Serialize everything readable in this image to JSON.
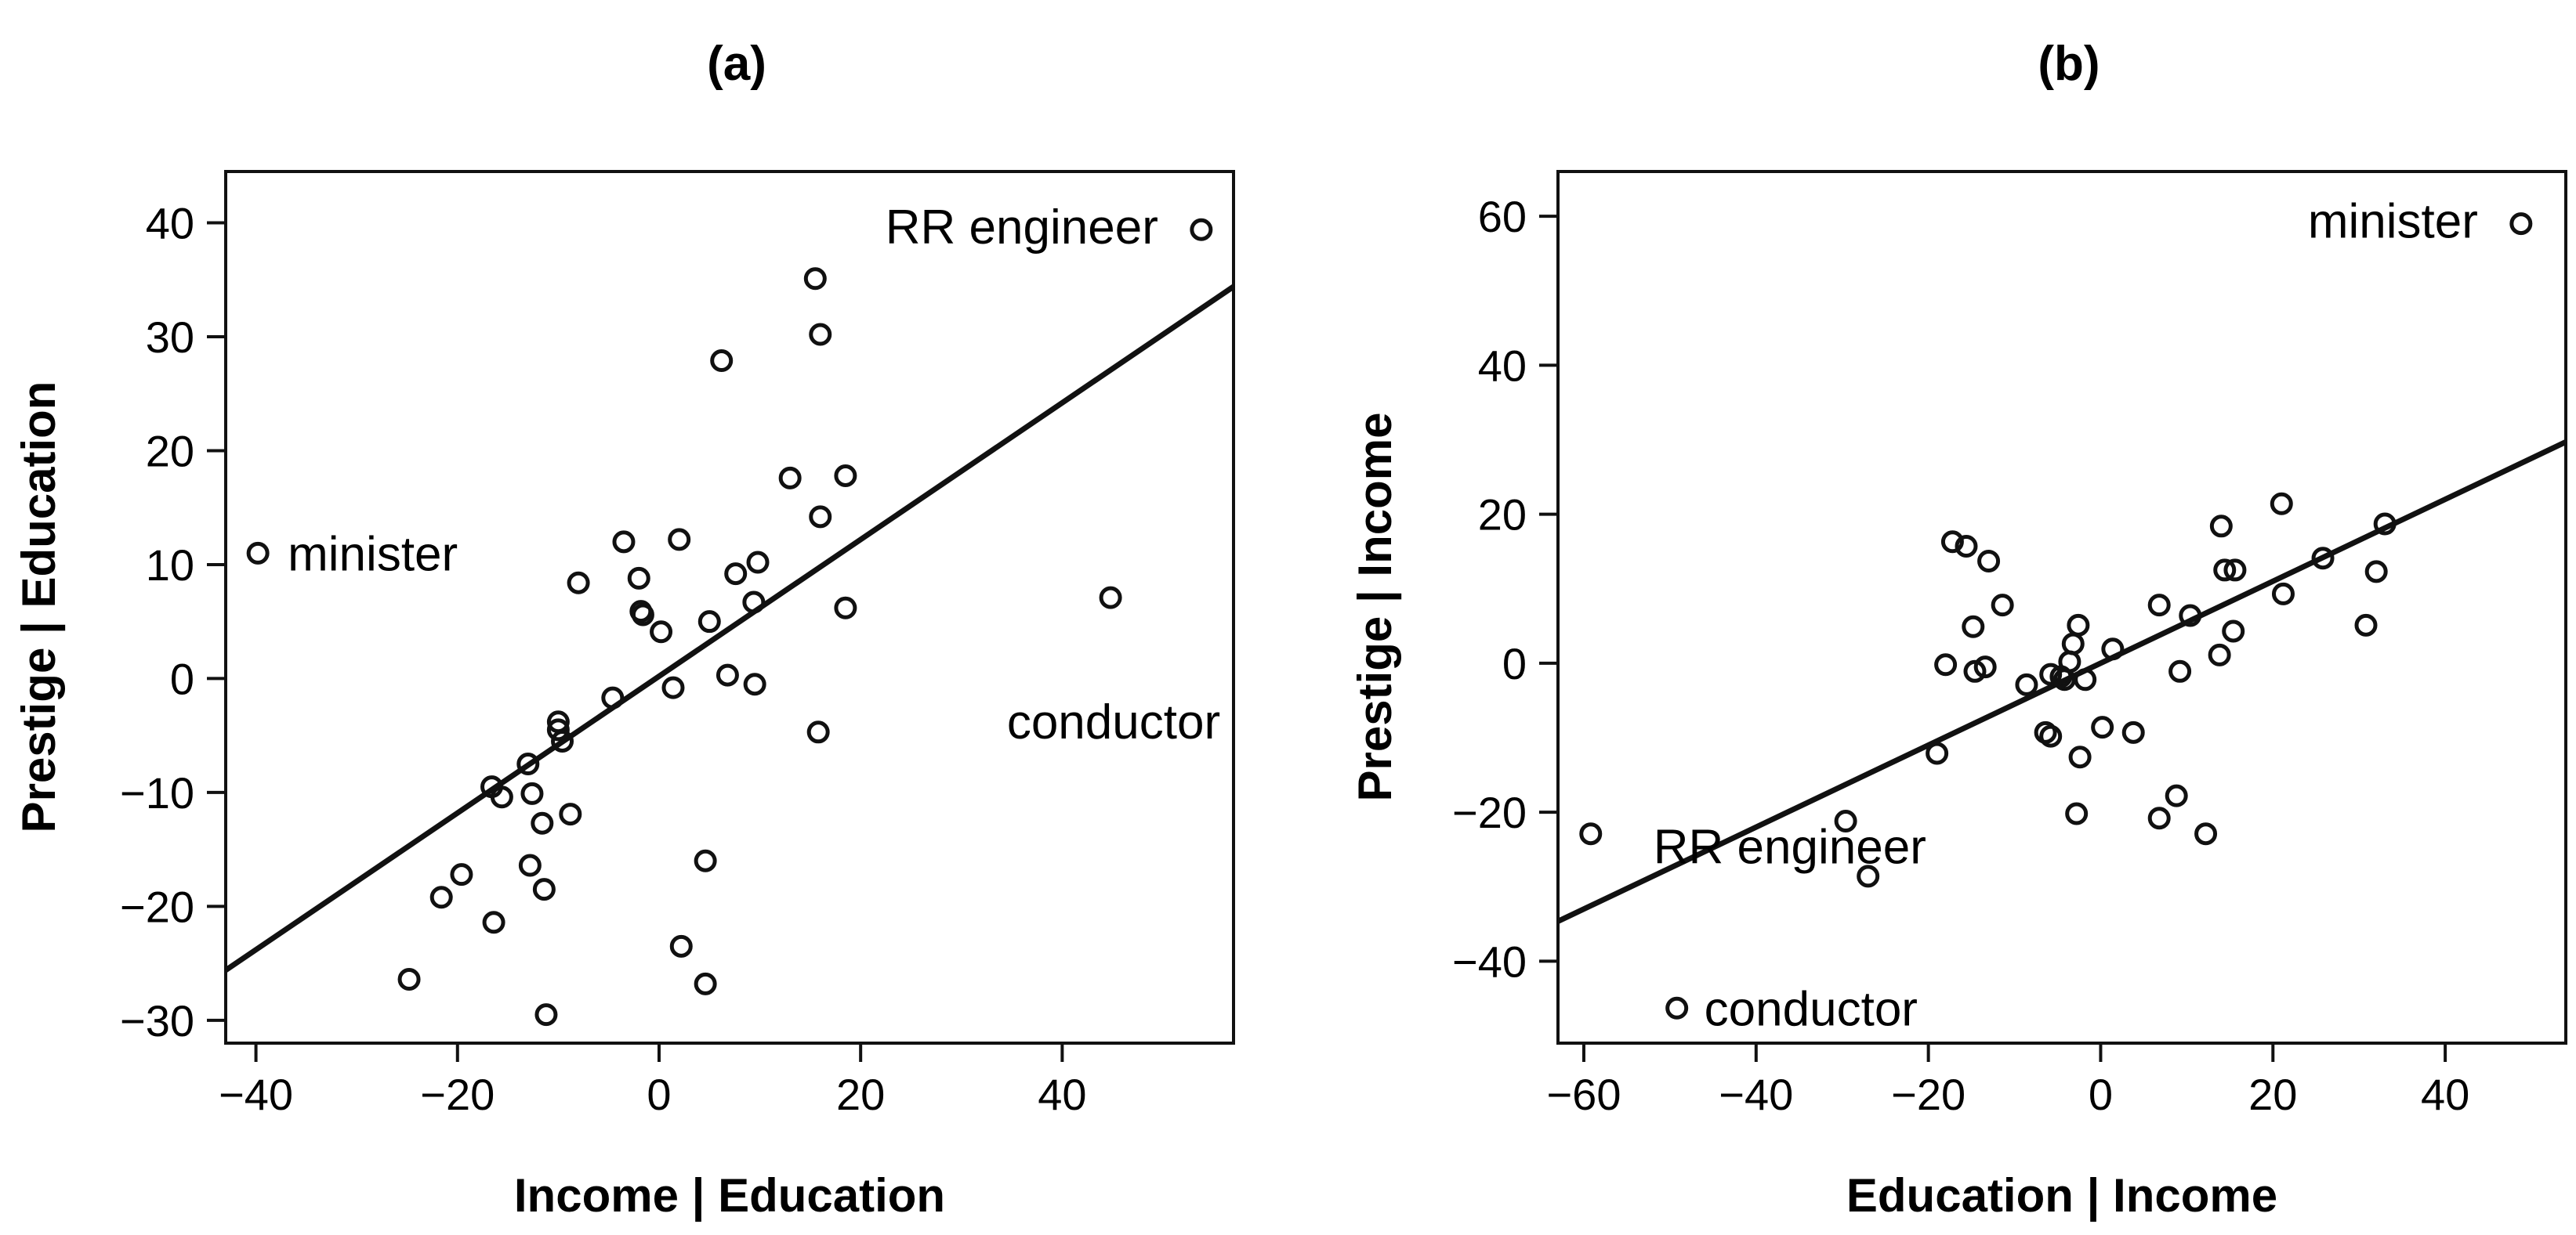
{
  "chart_data": [
    {
      "type": "scatter",
      "title": "(a)",
      "xlabel": "Income | Education",
      "ylabel": "Prestige | Education",
      "xlim": [
        -43,
        57
      ],
      "ylim": [
        -32,
        44.5
      ],
      "xticks": [
        -40,
        -20,
        0,
        20,
        40
      ],
      "yticks": [
        -30,
        -20,
        -10,
        0,
        10,
        20,
        30,
        40
      ],
      "tick_labels": {
        "x": [
          "−40",
          "−20",
          "0",
          "20",
          "40"
        ],
        "y": [
          "−30",
          "−20",
          "−10",
          "0",
          "10",
          "20",
          "30",
          "40"
        ]
      },
      "grid": false,
      "fit_line": {
        "slope": 0.6,
        "intercept": 0.2
      },
      "points": [
        {
          "x": 53.8,
          "y": 39.4
        },
        {
          "x": -39.8,
          "y": 11.0
        },
        {
          "x": 44.8,
          "y": 7.1
        },
        {
          "x": 15.5,
          "y": 35.1
        },
        {
          "x": 16.0,
          "y": 30.2
        },
        {
          "x": 6.2,
          "y": 27.9
        },
        {
          "x": 13.0,
          "y": 17.6
        },
        {
          "x": 18.5,
          "y": 17.8
        },
        {
          "x": 16.0,
          "y": 14.2
        },
        {
          "x": 2.0,
          "y": 12.2
        },
        {
          "x": -3.5,
          "y": 12.0
        },
        {
          "x": 9.8,
          "y": 10.2
        },
        {
          "x": 7.6,
          "y": 9.2
        },
        {
          "x": -2.0,
          "y": 8.8
        },
        {
          "x": -8.0,
          "y": 8.4
        },
        {
          "x": 9.4,
          "y": 6.7
        },
        {
          "x": 18.5,
          "y": 6.2
        },
        {
          "x": -1.8,
          "y": 5.9
        },
        {
          "x": -1.6,
          "y": 5.6
        },
        {
          "x": 5.0,
          "y": 5.0
        },
        {
          "x": 0.2,
          "y": 4.1
        },
        {
          "x": 6.8,
          "y": 0.3
        },
        {
          "x": 9.5,
          "y": -0.5
        },
        {
          "x": 1.4,
          "y": -0.8
        },
        {
          "x": -4.6,
          "y": -1.7
        },
        {
          "x": -10.0,
          "y": -3.8
        },
        {
          "x": -10.0,
          "y": -4.5
        },
        {
          "x": -9.6,
          "y": -5.5
        },
        {
          "x": 15.8,
          "y": -4.7
        },
        {
          "x": -13.0,
          "y": -7.5
        },
        {
          "x": -16.6,
          "y": -9.5
        },
        {
          "x": -15.6,
          "y": -10.4
        },
        {
          "x": -12.6,
          "y": -10.1
        },
        {
          "x": -8.8,
          "y": -11.9
        },
        {
          "x": -11.6,
          "y": -12.7
        },
        {
          "x": -12.8,
          "y": -16.4
        },
        {
          "x": 4.6,
          "y": -16.0
        },
        {
          "x": -11.4,
          "y": -18.5
        },
        {
          "x": -19.6,
          "y": -17.2
        },
        {
          "x": -21.6,
          "y": -19.2
        },
        {
          "x": -16.4,
          "y": -21.4
        },
        {
          "x": 2.2,
          "y": -23.5
        },
        {
          "x": -24.8,
          "y": -26.4
        },
        {
          "x": 4.6,
          "y": -26.8
        },
        {
          "x": -11.2,
          "y": -29.5
        }
      ],
      "annotations": [
        {
          "text": "RR engineer",
          "x": 53.8,
          "y": 39.4
        },
        {
          "text": "minister",
          "x": -39.8,
          "y": 11.0
        },
        {
          "text": "conductor",
          "x": 44.8,
          "y": 7.1
        }
      ]
    },
    {
      "type": "scatter",
      "title": "(b)",
      "xlabel": "Education | Income",
      "ylabel": "Prestige | Income",
      "xlim": [
        -63,
        54
      ],
      "ylim": [
        -51,
        66
      ],
      "xticks": [
        -60,
        -40,
        -20,
        0,
        20,
        40
      ],
      "yticks": [
        -40,
        -20,
        0,
        20,
        40,
        60
      ],
      "tick_labels": {
        "x": [
          "−60",
          "−40",
          "−20",
          "0",
          "20",
          "40"
        ],
        "y": [
          "−40",
          "−20",
          "0",
          "20",
          "40",
          "60"
        ]
      },
      "grid": false,
      "fit_line": {
        "slope": 0.55,
        "intercept": 0.0
      },
      "points": [
        {
          "x": 48.8,
          "y": 59.0
        },
        {
          "x": -59.2,
          "y": -22.9
        },
        {
          "x": -49.2,
          "y": -46.3
        },
        {
          "x": 21.0,
          "y": 21.4
        },
        {
          "x": 33.0,
          "y": 18.7
        },
        {
          "x": 14.0,
          "y": 18.4
        },
        {
          "x": -17.2,
          "y": 16.3
        },
        {
          "x": -15.6,
          "y": 15.7
        },
        {
          "x": -13.0,
          "y": 13.7
        },
        {
          "x": 25.8,
          "y": 14.1
        },
        {
          "x": 14.4,
          "y": 12.5
        },
        {
          "x": 15.6,
          "y": 12.5
        },
        {
          "x": 32.0,
          "y": 12.3
        },
        {
          "x": 21.2,
          "y": 9.3
        },
        {
          "x": -11.4,
          "y": 7.8
        },
        {
          "x": 6.8,
          "y": 7.8
        },
        {
          "x": 10.4,
          "y": 6.4
        },
        {
          "x": -2.6,
          "y": 5.1
        },
        {
          "x": -14.8,
          "y": 4.9
        },
        {
          "x": 30.8,
          "y": 5.1
        },
        {
          "x": 15.4,
          "y": 4.3
        },
        {
          "x": -3.2,
          "y": 2.6
        },
        {
          "x": 1.4,
          "y": 1.9
        },
        {
          "x": 13.8,
          "y": 1.1
        },
        {
          "x": -3.6,
          "y": 0.2
        },
        {
          "x": -18.0,
          "y": -0.2
        },
        {
          "x": -13.4,
          "y": -0.5
        },
        {
          "x": -14.6,
          "y": -1.1
        },
        {
          "x": 9.2,
          "y": -1.1
        },
        {
          "x": -5.8,
          "y": -1.5
        },
        {
          "x": -4.6,
          "y": -1.8
        },
        {
          "x": -4.2,
          "y": -2.2
        },
        {
          "x": -1.8,
          "y": -2.2
        },
        {
          "x": -8.6,
          "y": -2.9
        },
        {
          "x": 0.2,
          "y": -8.6
        },
        {
          "x": 3.8,
          "y": -9.3
        },
        {
          "x": -6.4,
          "y": -9.3
        },
        {
          "x": -5.8,
          "y": -9.8
        },
        {
          "x": -19.0,
          "y": -12.1
        },
        {
          "x": -2.4,
          "y": -12.6
        },
        {
          "x": 8.8,
          "y": -17.8
        },
        {
          "x": -2.8,
          "y": -20.2
        },
        {
          "x": 6.8,
          "y": -20.8
        },
        {
          "x": -29.6,
          "y": -21.2
        },
        {
          "x": 12.2,
          "y": -22.9
        },
        {
          "x": -27.0,
          "y": -28.6
        }
      ],
      "annotations": [
        {
          "text": "minister",
          "x": 48.8,
          "y": 59.0
        },
        {
          "text": "RR engineer",
          "x": -59.2,
          "y": -22.9
        },
        {
          "text": "conductor",
          "x": -49.2,
          "y": -46.3
        }
      ]
    }
  ]
}
